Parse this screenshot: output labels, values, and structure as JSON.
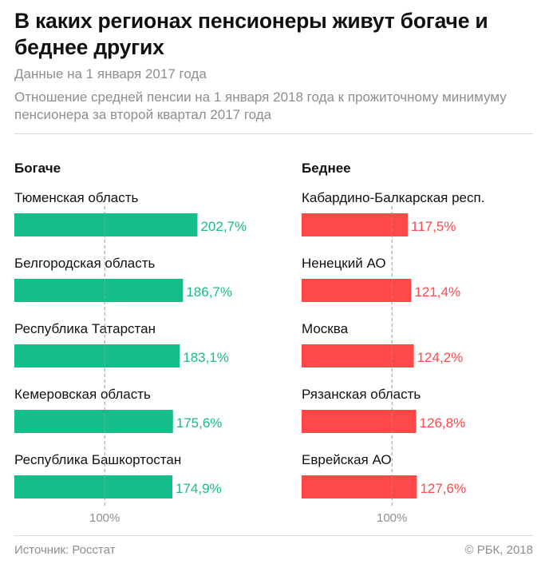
{
  "header": {
    "title": "В каких регионах пенсионеры живут богаче и беднее других",
    "subtitle": "Данные на 1 января 2017 года",
    "note": "Отношение средней пенсии на 1 января 2018 года к прожиточному минимуму пенсионера за второй квартал 2017 года"
  },
  "footer": {
    "source": "Источник: Росстат",
    "copyright": "© РБК, 2018"
  },
  "colors": {
    "richer": "#14bd8a",
    "poorer": "#ff4848",
    "reference_line": "#9a9a9a",
    "muted_text": "#8e8e8e"
  },
  "chart_data": [
    {
      "type": "bar",
      "orientation": "horizontal",
      "panel_title": "Богаче",
      "color": "#14bd8a",
      "categories": [
        "Тюменская область",
        "Белгородская область",
        "Республика Татарстан",
        "Кемеровская область",
        "Республика Башкортостан"
      ],
      "values": [
        202.7,
        186.7,
        183.1,
        175.6,
        174.9
      ],
      "value_labels": [
        "202,7%",
        "186,7%",
        "183,1%",
        "175,6%",
        "174,9%"
      ],
      "reference_value": 100,
      "reference_label": "100%"
    },
    {
      "type": "bar",
      "orientation": "horizontal",
      "panel_title": "Беднее",
      "color": "#ff4848",
      "categories": [
        "Кабардино-Балкарская респ.",
        "Ненецкий АО",
        "Москва",
        "Рязанская область",
        "Еврейская АО"
      ],
      "values": [
        117.5,
        121.4,
        124.2,
        126.8,
        127.6
      ],
      "value_labels": [
        "117,5%",
        "121,4%",
        "124,2%",
        "126,8%",
        "127,6%"
      ],
      "reference_value": 100,
      "reference_label": "100%"
    }
  ]
}
